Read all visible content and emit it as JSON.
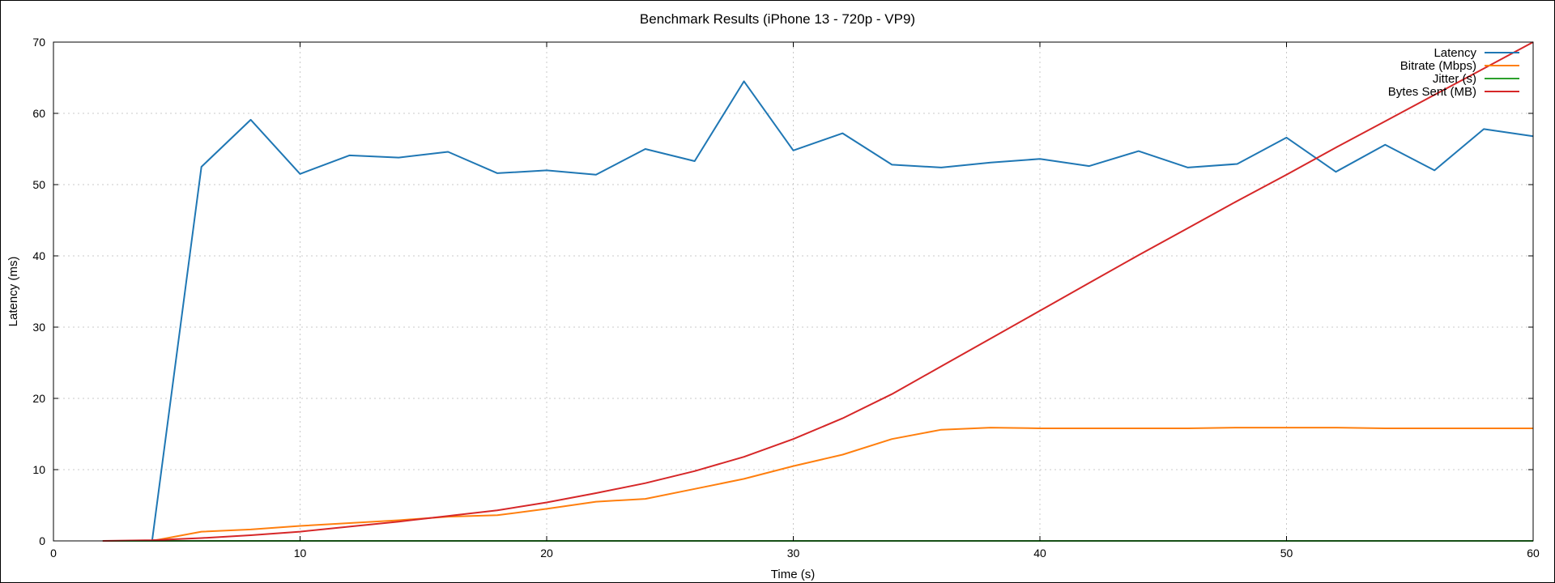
{
  "chart_data": {
    "type": "line",
    "title": "Benchmark Results (iPhone 13 - 720p - VP9)",
    "xlabel": "Time (s)",
    "ylabel": "Latency (ms)",
    "xlim": [
      0,
      60
    ],
    "ylim": [
      0,
      70
    ],
    "xticks": [
      0,
      10,
      20,
      30,
      40,
      50,
      60
    ],
    "yticks": [
      0,
      10,
      20,
      30,
      40,
      50,
      60,
      70
    ],
    "grid": true,
    "legend_position": "top-right",
    "x": [
      2,
      4,
      6,
      8,
      10,
      12,
      14,
      16,
      18,
      20,
      22,
      24,
      26,
      28,
      30,
      32,
      34,
      36,
      38,
      40,
      42,
      44,
      46,
      48,
      50,
      52,
      54,
      56,
      58,
      60
    ],
    "series": [
      {
        "name": "Latency",
        "color": "#1f77b4",
        "values": [
          0,
          0,
          52.5,
          59.1,
          51.5,
          54.1,
          53.8,
          54.6,
          51.6,
          52.0,
          51.4,
          55.0,
          53.3,
          64.5,
          54.8,
          57.2,
          52.8,
          52.4,
          53.1,
          53.6,
          52.6,
          54.7,
          52.4,
          52.9,
          56.6,
          51.8,
          55.6,
          52.0,
          57.8,
          56.8
        ]
      },
      {
        "name": "Bitrate (Mbps)",
        "color": "#ff7f0e",
        "values": [
          0,
          0,
          1.3,
          1.6,
          2.1,
          2.5,
          2.9,
          3.4,
          3.6,
          4.5,
          5.5,
          5.9,
          7.3,
          8.7,
          10.5,
          12.1,
          14.3,
          15.6,
          15.9,
          15.8,
          15.8,
          15.8,
          15.8,
          15.9,
          15.9,
          15.9,
          15.8,
          15.8,
          15.8,
          15.8
        ]
      },
      {
        "name": "Jitter (s)",
        "color": "#2ca02c",
        "values": [
          0,
          0,
          0,
          0,
          0,
          0,
          0,
          0,
          0,
          0,
          0,
          0,
          0,
          0,
          0,
          0,
          0,
          0,
          0,
          0,
          0,
          0,
          0,
          0,
          0,
          0,
          0,
          0,
          0,
          0
        ]
      },
      {
        "name": "Bytes Sent (MB)",
        "color": "#d62728",
        "values": [
          0,
          0.1,
          0.4,
          0.8,
          1.3,
          2.0,
          2.7,
          3.5,
          4.3,
          5.4,
          6.7,
          8.1,
          9.8,
          11.8,
          14.3,
          17.2,
          20.6,
          24.5,
          28.4,
          32.3,
          36.2,
          40.1,
          43.9,
          47.7,
          51.4,
          55.2,
          58.9,
          62.6,
          66.3,
          70.0
        ]
      }
    ]
  }
}
